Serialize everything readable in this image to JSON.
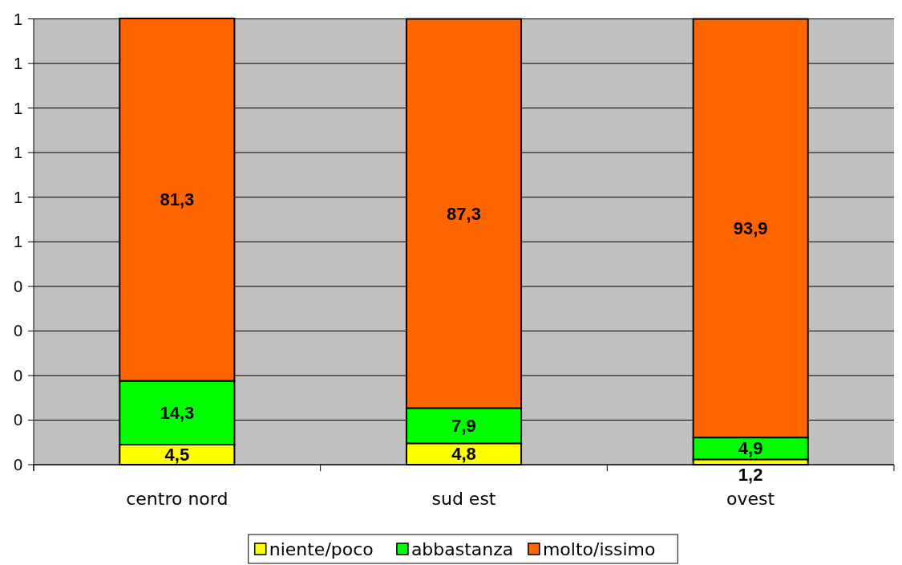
{
  "chart_data": {
    "type": "bar",
    "stacked": true,
    "categories": [
      "centro nord",
      "sud est",
      "ovest"
    ],
    "series": [
      {
        "name": "niente/poco",
        "color": "#ffff00",
        "axis": "y2",
        "values": [
          4.5,
          4.8,
          1.2
        ],
        "value_labels": [
          "4,5",
          "4,8",
          "1,2"
        ]
      },
      {
        "name": "abbastanza",
        "color": "#00ff00",
        "axis": "y2",
        "values": [
          14.3,
          7.9,
          4.9
        ],
        "value_labels": [
          "14,3",
          "7,9",
          "4,9"
        ]
      },
      {
        "name": "molto/issimo",
        "color": "#ff6600",
        "axis": "y2",
        "values": [
          81.3,
          87.3,
          93.9
        ],
        "value_labels": [
          "81,3",
          "87,3",
          "93,9"
        ]
      }
    ],
    "ylim": [
      0,
      1.001
    ],
    "yticks": [
      {
        "value": 0,
        "label": "0"
      },
      {
        "value": 0.1,
        "label": "0"
      },
      {
        "value": 0.2,
        "label": "0"
      },
      {
        "value": 0.3,
        "label": "0"
      },
      {
        "value": 0.4,
        "label": "0"
      },
      {
        "value": 0.5,
        "label": "1"
      },
      {
        "value": 0.6,
        "label": "1"
      },
      {
        "value": 0.7,
        "label": "1"
      },
      {
        "value": 0.8,
        "label": "1"
      },
      {
        "value": 0.9,
        "label": "1"
      },
      {
        "value": 1,
        "label": "1"
      }
    ],
    "y2lim": [
      0,
      100.1
    ],
    "grid": "y",
    "legend": "bottom"
  }
}
